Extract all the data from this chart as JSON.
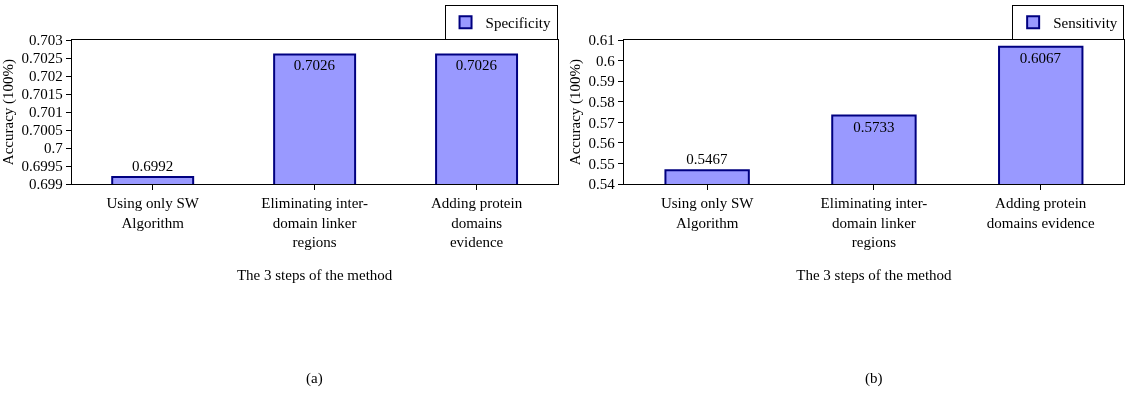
{
  "chart_data": [
    {
      "type": "bar",
      "categories": [
        "Using only SW\nAlgorithm",
        "Eliminating inter-\ndomain linker\nregions",
        "Adding protein\ndomains\nevidence"
      ],
      "series": [
        {
          "name": "Specificity",
          "color": "#9999ff",
          "values": [
            0.6992,
            0.7026,
            0.7026
          ]
        }
      ],
      "data_labels": true,
      "ylim": [
        0.699,
        0.703
      ],
      "yticks": [
        0.699,
        0.6995,
        0.7,
        0.7005,
        0.701,
        0.7015,
        0.702,
        0.7025,
        0.703
      ],
      "xlabel": "The 3 steps of the method",
      "ylabel": "Accuracy (100%)",
      "legend": "top right",
      "annotations": [
        "(a)"
      ]
    },
    {
      "type": "bar",
      "categories": [
        "Using only SW\nAlgorithm",
        "Eliminating inter-\ndomain linker\nregions",
        "Adding protein\ndomains evidence"
      ],
      "series": [
        {
          "name": "Sensitivity",
          "color": "#9999ff",
          "values": [
            0.5467,
            0.5733,
            0.6067
          ]
        }
      ],
      "data_labels": true,
      "ylim": [
        0.54,
        0.61
      ],
      "yticks": [
        0.54,
        0.55,
        0.56,
        0.57,
        0.58,
        0.59,
        0.6,
        0.61
      ],
      "xlabel": "The 3 steps of the method",
      "ylabel": "Accuracy (100%)",
      "legend": "top right",
      "annotations": [
        "(b)"
      ]
    }
  ]
}
